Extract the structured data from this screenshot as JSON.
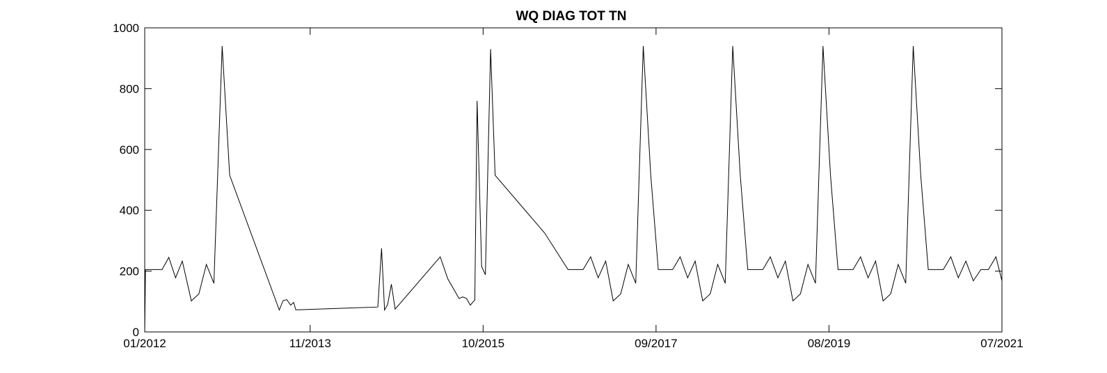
{
  "chart_data": {
    "type": "line",
    "title": "WQ DIAG TOT TN",
    "xlabel": "",
    "ylabel": "",
    "ylim": [
      0,
      1000
    ],
    "yticks": [
      0,
      200,
      400,
      600,
      800,
      1000
    ],
    "xlim": [
      0,
      114
    ],
    "xticks": [
      {
        "value": 0,
        "label": "01/2012"
      },
      {
        "value": 22,
        "label": "11/2013"
      },
      {
        "value": 45,
        "label": "10/2015"
      },
      {
        "value": 68,
        "label": "09/2017"
      },
      {
        "value": 91,
        "label": "08/2019"
      },
      {
        "value": 114,
        "label": "07/2021"
      }
    ],
    "series": [
      {
        "name": "WQ DIAG TOT TN",
        "color": "#000000",
        "x": [
          0.0,
          0.1,
          0.2,
          2.3,
          3.2,
          4.1,
          5.0,
          6.2,
          7.2,
          8.2,
          9.2,
          10.3,
          11.3,
          17.9,
          18.4,
          18.9,
          19.4,
          19.8,
          20.1,
          20.6,
          31.0,
          31.5,
          31.9,
          32.3,
          32.8,
          33.3,
          39.3,
          40.3,
          41.8,
          42.3,
          42.8,
          43.3,
          43.9,
          44.2,
          44.8,
          45.3,
          46.0,
          46.6,
          53.2,
          56.3,
          58.3,
          59.3,
          60.3,
          61.3,
          62.3,
          63.3,
          64.3,
          65.3,
          66.3,
          67.3,
          68.3,
          69.2,
          70.2,
          71.2,
          72.2,
          73.2,
          74.2,
          75.2,
          76.2,
          77.2,
          78.2,
          79.2,
          80.2,
          81.2,
          82.2,
          83.2,
          84.2,
          85.2,
          86.2,
          87.2,
          88.2,
          89.2,
          90.2,
          91.2,
          92.2,
          93.2,
          94.2,
          95.2,
          96.2,
          97.2,
          98.2,
          99.2,
          100.2,
          101.2,
          102.2,
          103.2,
          104.2,
          105.2,
          106.2,
          107.2,
          108.2,
          109.2,
          110.2,
          111.2,
          112.2,
          113.2,
          114.0
        ],
        "y": [
          0,
          205,
          205,
          205,
          245,
          178,
          233,
          102,
          125,
          222,
          160,
          940,
          515,
          72,
          103,
          106,
          88,
          97,
          73,
          73,
          82,
          275,
          72,
          90,
          157,
          75,
          247,
          175,
          110,
          115,
          110,
          88,
          105,
          760,
          215,
          188,
          930,
          515,
          325,
          205,
          205,
          247,
          178,
          233,
          102,
          125,
          222,
          160,
          940,
          515,
          205,
          205,
          205,
          247,
          178,
          233,
          102,
          125,
          222,
          160,
          940,
          515,
          205,
          205,
          205,
          247,
          178,
          233,
          102,
          125,
          222,
          160,
          940,
          515,
          205,
          205,
          205,
          247,
          178,
          233,
          102,
          125,
          222,
          160,
          940,
          515,
          205,
          205,
          205,
          247,
          178,
          233,
          168,
          205,
          205,
          247,
          168
        ]
      }
    ]
  }
}
